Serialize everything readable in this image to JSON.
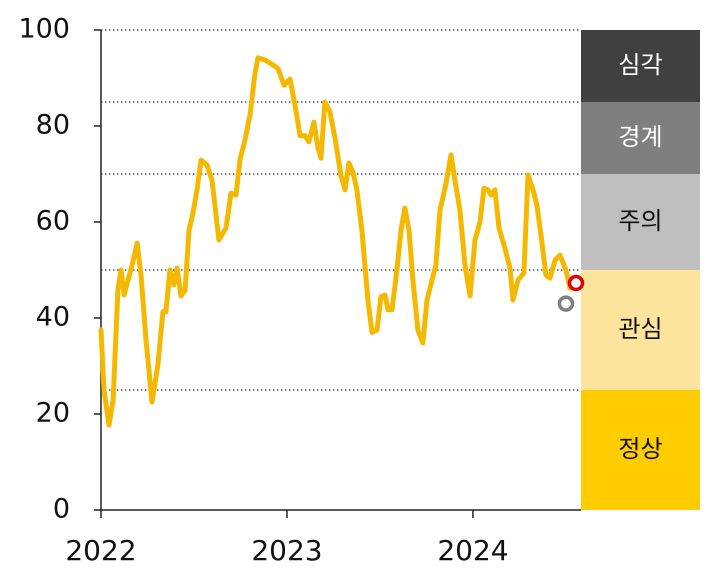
{
  "chart_data": {
    "type": "line",
    "x": [
      2022.0,
      2022.016,
      2022.043,
      2022.065,
      2022.091,
      2022.108,
      2022.124,
      2022.145,
      2022.167,
      2022.194,
      2022.215,
      2022.242,
      2022.274,
      2022.306,
      2022.333,
      2022.349,
      2022.371,
      2022.392,
      2022.409,
      2022.43,
      2022.452,
      2022.473,
      2022.495,
      2022.516,
      2022.538,
      2022.57,
      2022.597,
      2022.634,
      2022.672,
      2022.699,
      2022.726,
      2022.747,
      2022.774,
      2022.801,
      2022.828,
      2022.844,
      2022.882,
      2022.919,
      2022.952,
      2022.984,
      2023.016,
      2023.048,
      2023.07,
      2023.097,
      2023.118,
      2023.145,
      2023.167,
      2023.183,
      2023.204,
      2023.231,
      2023.258,
      2023.29,
      2023.312,
      2023.333,
      2023.355,
      2023.376,
      2023.403,
      2023.435,
      2023.457,
      2023.484,
      2023.505,
      2023.527,
      2023.543,
      2023.565,
      2023.591,
      2023.613,
      2023.634,
      2023.656,
      2023.677,
      2023.704,
      2023.731,
      2023.753,
      2023.78,
      2023.801,
      2023.823,
      2023.855,
      2023.882,
      2023.903,
      2023.93,
      2023.957,
      2023.984,
      2024.011,
      2024.038,
      2024.059,
      2024.081,
      2024.097,
      2024.118,
      2024.14,
      2024.167,
      2024.199,
      2024.215,
      2024.242,
      2024.274,
      2024.296,
      2024.323,
      2024.344,
      2024.366,
      2024.392,
      2024.414,
      2024.441,
      2024.468,
      2024.5,
      2024.522
    ],
    "series": [
      {
        "color": "#f5b800",
        "values": [
          37.5,
          25,
          17.7,
          22.9,
          45.8,
          50,
          44.8,
          47.9,
          51,
          55.6,
          49,
          35.4,
          22.5,
          30.2,
          41.3,
          41.3,
          50,
          46.9,
          50.4,
          44.6,
          45.8,
          58.3,
          62,
          66.7,
          72.9,
          71.9,
          68.75,
          56.25,
          58.75,
          66,
          65.6,
          72.9,
          77,
          82.3,
          91,
          94.2,
          93.75,
          92.9,
          92,
          88.5,
          89.8,
          83.3,
          78,
          78,
          76.7,
          80.8,
          75.4,
          73.3,
          85,
          83,
          77.5,
          69.8,
          66.7,
          72.3,
          70.4,
          66.7,
          58.3,
          43.75,
          37,
          37.5,
          44.4,
          44.8,
          41.7,
          41.7,
          50,
          58.3,
          62.9,
          58.3,
          47.9,
          37.5,
          34.8,
          43.75,
          47.9,
          51,
          62.5,
          68,
          74,
          68.75,
          62.5,
          51,
          44.6,
          56.25,
          60,
          67,
          66.7,
          65.6,
          66.7,
          58.75,
          55.2,
          50.4,
          43.75,
          47.9,
          49.4,
          69.8,
          66.7,
          63.5,
          57.3,
          49,
          48.3,
          52,
          53.1,
          50,
          46.25
        ]
      }
    ],
    "points": [
      {
        "x": 2024.5,
        "value": 43,
        "color": "#7f7f7f"
      },
      {
        "x": 2024.554,
        "value": 47.3,
        "color": "#e00000"
      }
    ],
    "zones": [
      {
        "label": "심각",
        "from": 85,
        "to": 100,
        "color": "#404040",
        "text_color": "#ffffff"
      },
      {
        "label": "경계",
        "from": 70,
        "to": 85,
        "color": "#7f7f7f",
        "text_color": "#ffffff"
      },
      {
        "label": "주의",
        "from": 50,
        "to": 70,
        "color": "#bfbfbf",
        "text_color": "#111111"
      },
      {
        "label": "관심",
        "from": 25,
        "to": 50,
        "color": "#fde49c",
        "text_color": "#111111"
      },
      {
        "label": "정상",
        "from": 0,
        "to": 25,
        "color": "#ffcc00",
        "text_color": "#111111"
      }
    ],
    "xlim": [
      2022,
      2024.581
    ],
    "xticks": [
      2022,
      2023,
      2024
    ],
    "ylim": [
      0,
      100
    ],
    "yticks": [
      0,
      20,
      40,
      60,
      80,
      100
    ]
  }
}
